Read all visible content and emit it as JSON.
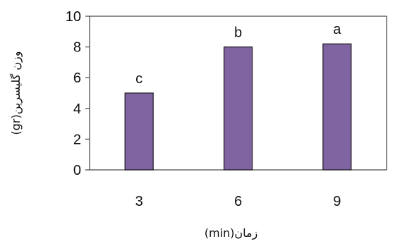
{
  "chart_data": {
    "type": "bar",
    "categories": [
      "3",
      "6",
      "9"
    ],
    "values": [
      5.0,
      8.0,
      8.2
    ],
    "data_labels": [
      "c",
      "b",
      "a"
    ],
    "title": "",
    "xlabel": "(min)زمان",
    "ylabel": "(gr)وزن گلیسرین",
    "ylim": [
      0,
      10
    ],
    "y_ticks": [
      "0",
      "2",
      "4",
      "6",
      "8",
      "10"
    ],
    "grid": false,
    "legend": "none",
    "colors": {
      "bar_fill": "#8064a2",
      "bar_stroke": "#1a1a1a",
      "axis": "#444444"
    }
  }
}
